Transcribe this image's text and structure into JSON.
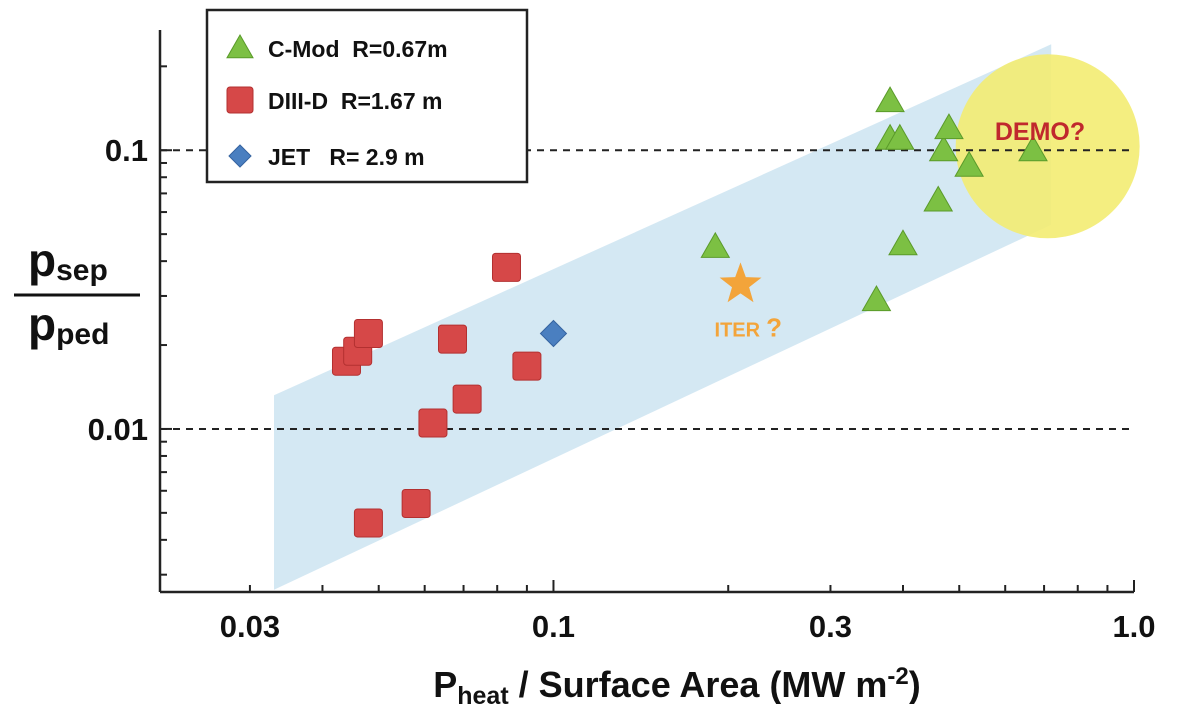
{
  "chart_data": {
    "type": "scatter",
    "xscale": "log",
    "yscale": "log",
    "xlim": [
      0.021,
      1.0
    ],
    "ylim": [
      0.0026,
      0.27
    ],
    "x_ticks": [
      {
        "value": 0.03,
        "label": "0.03"
      },
      {
        "value": 0.1,
        "label": "0.1"
      },
      {
        "value": 0.3,
        "label": "0.3"
      },
      {
        "value": 1.0,
        "label": "1.0"
      }
    ],
    "y_ticks": [
      {
        "value": 0.01,
        "label": "0.01"
      },
      {
        "value": 0.1,
        "label": "0.1"
      }
    ],
    "xlabel": {
      "main": "P",
      "sub": "heat",
      "rest": " / Surface Area (MW m",
      "sup": "-2",
      "close": ")"
    },
    "ylabel": {
      "num_main": "p",
      "num_sub": "sep",
      "den_main": "p",
      "den_sub": "ped"
    },
    "grid": "dashed horizontal lines at 0.01 and 0.1",
    "legend_position": "top-left",
    "series": [
      {
        "name": "C-Mod  R=0.67m",
        "marker": "triangle",
        "color": "#7cc043",
        "points": [
          {
            "x": 0.19,
            "y": 0.045
          },
          {
            "x": 0.36,
            "y": 0.029
          },
          {
            "x": 0.38,
            "y": 0.15
          },
          {
            "x": 0.38,
            "y": 0.11
          },
          {
            "x": 0.395,
            "y": 0.11
          },
          {
            "x": 0.4,
            "y": 0.046
          },
          {
            "x": 0.46,
            "y": 0.066
          },
          {
            "x": 0.47,
            "y": 0.1
          },
          {
            "x": 0.48,
            "y": 0.12
          },
          {
            "x": 0.52,
            "y": 0.088
          },
          {
            "x": 0.67,
            "y": 0.1
          }
        ]
      },
      {
        "name": "DIII-D  R=1.67 m",
        "marker": "square",
        "color": "#d64848",
        "points": [
          {
            "x": 0.044,
            "y": 0.0175
          },
          {
            "x": 0.046,
            "y": 0.019
          },
          {
            "x": 0.048,
            "y": 0.022
          },
          {
            "x": 0.048,
            "y": 0.0046
          },
          {
            "x": 0.058,
            "y": 0.0054
          },
          {
            "x": 0.062,
            "y": 0.0105
          },
          {
            "x": 0.067,
            "y": 0.021
          },
          {
            "x": 0.071,
            "y": 0.0128
          },
          {
            "x": 0.083,
            "y": 0.038
          },
          {
            "x": 0.09,
            "y": 0.0168
          }
        ]
      },
      {
        "name": "JET   R= 2.9 m",
        "marker": "diamond",
        "color": "#4a7fc0",
        "points": [
          {
            "x": 0.1,
            "y": 0.022
          }
        ]
      }
    ],
    "band": {
      "color": "#cfe6f2",
      "corners": [
        {
          "x": 0.033,
          "y": 0.00265
        },
        {
          "x": 0.033,
          "y": 0.0132
        },
        {
          "x": 0.72,
          "y": 0.24
        },
        {
          "x": 0.72,
          "y": 0.054
        }
      ]
    },
    "annotations": [
      {
        "text": "ITER",
        "suffix": "?",
        "x": 0.21,
        "y": 0.033,
        "marker": "star",
        "color": "#f3a43a"
      },
      {
        "text": "DEMO?",
        "x": 0.71,
        "y": 0.1,
        "circle_color": "#f3ec72",
        "text_color": "#c0282d"
      }
    ]
  }
}
